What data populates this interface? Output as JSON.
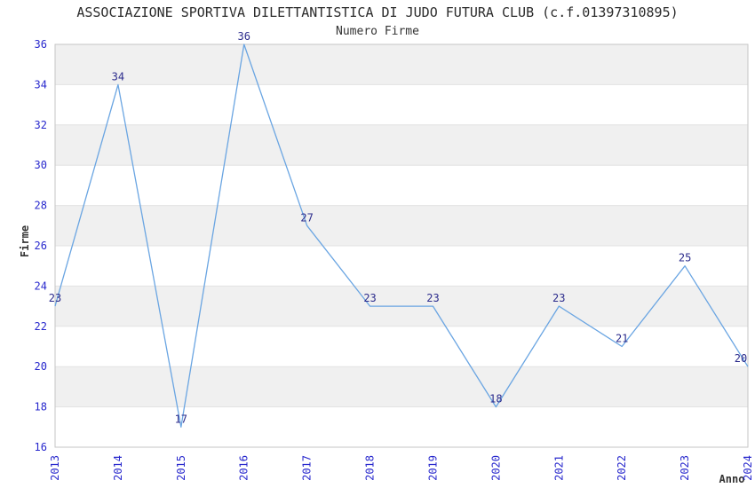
{
  "page": {
    "background": "#ffffff"
  },
  "chart_data": {
    "type": "line",
    "title": "ASSOCIAZIONE SPORTIVA DILETTANTISTICA DI JUDO FUTURA CLUB (c.f.01397310895)",
    "subtitle": "Numero Firme",
    "xlabel": "Anno",
    "ylabel": "Firme",
    "categories": [
      "2013",
      "2014",
      "2015",
      "2016",
      "2017",
      "2018",
      "2019",
      "2020",
      "2021",
      "2022",
      "2023",
      "2024"
    ],
    "series": [
      {
        "name": "Numero Firme",
        "values": [
          23,
          34,
          17,
          36,
          27,
          23,
          23,
          18,
          23,
          21,
          25,
          20
        ]
      }
    ],
    "ylim": [
      16,
      36
    ],
    "ytick_step": 2,
    "yticks": [
      16,
      18,
      20,
      22,
      24,
      26,
      28,
      30,
      32,
      34,
      36
    ],
    "grid": "horizontal gridlines with alternating shaded bands",
    "legend_position": "none",
    "data_labels_visible": true,
    "x_tick_rotation_deg": -90,
    "colors": {
      "line": "#6aa5e2",
      "tick_label": "#2828cd",
      "data_label": "#2b2b8c",
      "title": "#2b2b2b",
      "axis_label": "#333333",
      "band": "#f0f0f0",
      "gridline": "#e2e2e2",
      "border": "#c6c6c6",
      "background": "#ffffff"
    }
  }
}
